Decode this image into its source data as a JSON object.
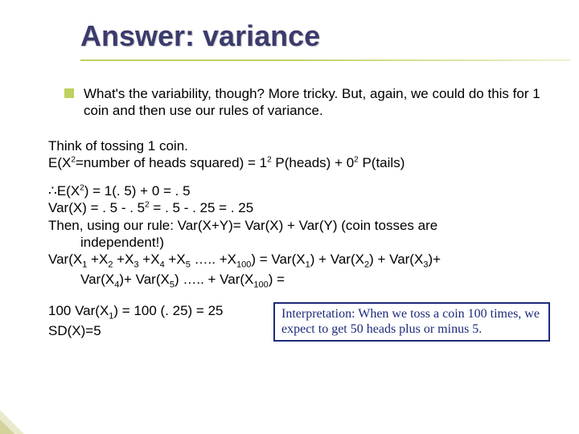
{
  "title": "Answer: variance",
  "intro": "What's the variability, though?  More tricky.  But, again, we could do this for 1 coin and then use our rules of variance.",
  "think_l1": "Think of tossing 1 coin.",
  "ex2_pre": "E(X",
  "ex2_mid": "=number of heads squared) = 1",
  "ex2_mid2": " P(heads) + 0",
  "ex2_end": " P(tails)",
  "sup2": "2",
  "therefore": "∴",
  "ex2_calc_pre": "E(X",
  "ex2_calc_post": ") = 1(. 5) + 0  = . 5",
  "varx_pre": "Var(X) = . 5 - . 5",
  "varx_post": "   =  . 5 - . 25  = . 25",
  "rule_line": "Then, using our rule: Var(X+Y)= Var(X) + Var(Y)    (coin tosses are",
  "rule_cont": "independent!)",
  "sum_pre": "Var(X",
  "plus": " +X",
  "ell": " ….. +X",
  "sum_rhs_a": ") = Var(X",
  "sum_rhs_b": ") + Var(X",
  "sum_rhs_c": ")+",
  "sum_cont_a": "Var(X",
  "sum_cont_b": ")+ Var(X",
  "sum_cont_c": ") ….. + Var(X",
  "sum_cont_d": ") =",
  "s1": "1",
  "s2": "2",
  "s3": "3",
  "s4": "4",
  "s5": "5",
  "s100": "100",
  "hund_a": "100 Var(X",
  "hund_b": ")  =  100 (. 25) = 25",
  "sd": "SD(X)=5",
  "interp": "Interpretation: When we toss a coin 100 times, we expect to get 50 heads plus or minus 5.",
  "colors": {
    "title": "#3b3b6d",
    "underline_from": "#c0d060",
    "bullet": "#c0d060",
    "box_border": "#1d2a7b",
    "box_text": "#1d2a7b",
    "bg": "#ffffff"
  }
}
